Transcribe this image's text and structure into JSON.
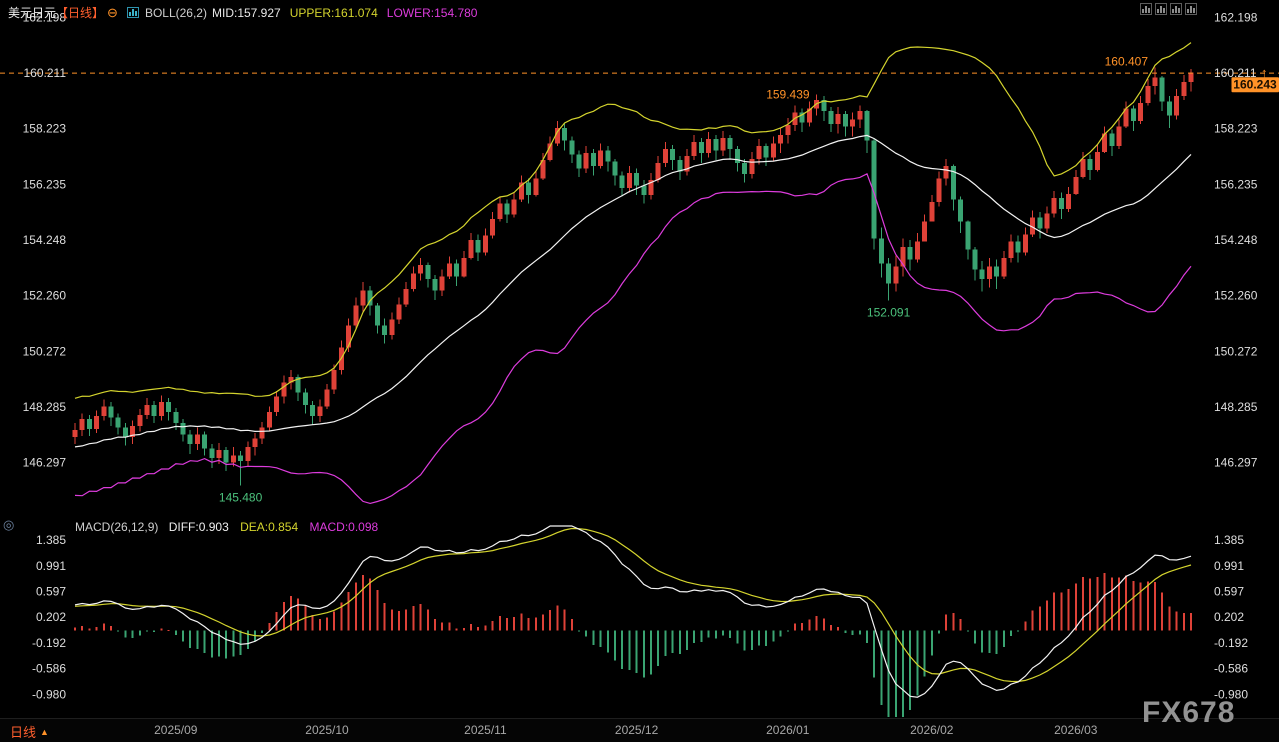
{
  "header": {
    "symbol": "美元日元",
    "timeframe_tag": "【日线】",
    "collapse_icon": "⊖",
    "boll_label": "BOLL(26,2)",
    "mid_label": "MID:157.927",
    "upper_label": "UPPER:161.074",
    "lower_label": "LOWER:154.780"
  },
  "macd_header": {
    "macd_label": "MACD(26,12,9)",
    "diff_label": "DIFF:0.903",
    "dea_label": "DEA:0.854",
    "macd_value_label": "MACD:0.098"
  },
  "footer": {
    "timeframe": "日线",
    "timeframe_arrow": "▲",
    "watermark": "FX678"
  },
  "icons": {
    "arrow_up": "↑",
    "toolbar": [
      "candlestick-view",
      "bar-view",
      "line-view",
      "fullscreen-view"
    ],
    "crosshair": "◎"
  },
  "colors": {
    "background": "#000000",
    "up": "#df4238",
    "down": "#3aa472",
    "boll_upper": "#d4d42e",
    "boll_mid": "#f2f2f2",
    "boll_lower": "#dd3cdd",
    "diff": "#f2f2f2",
    "dea": "#d4d42e",
    "orange": "#ff9228",
    "annotation_green": "#4cc27d",
    "axis_text": "#dedede",
    "x_text": "#a8a8a8"
  },
  "chart_data": {
    "type": "candlestick",
    "symbol": "USD/JPY",
    "title": "美元日元 日线",
    "interval": "daily",
    "price_panel": {
      "indicator": "BOLL(26,2)",
      "ticks": [
        162.198,
        160.211,
        158.223,
        156.235,
        154.248,
        152.26,
        150.272,
        148.285,
        146.297
      ]
    },
    "macd_panel": {
      "indicator": "MACD(26,12,9)",
      "ticks": [
        1.385,
        0.991,
        0.597,
        0.202,
        -0.192,
        -0.586,
        -0.98
      ]
    },
    "x_ticks": {
      "labels": [
        "2025/09",
        "2025/10",
        "2025/11",
        "2025/12",
        "2026/01",
        "2026/02",
        "2026/03"
      ],
      "indices": [
        14,
        35,
        57,
        78,
        99,
        119,
        139
      ]
    },
    "boll": {
      "period": 26,
      "mult": 2
    },
    "macd": {
      "fast": 12,
      "slow": 26,
      "signal": 9
    },
    "latest": {
      "mid": 157.927,
      "upper": 161.074,
      "lower": 154.78,
      "diff": 0.903,
      "dea": 0.854,
      "macd": 0.098
    },
    "ref_line": 160.211,
    "last_price": {
      "text": "160.243",
      "price": 160.243
    },
    "first_open": 147.2,
    "close": [
      147.45,
      147.85,
      147.5,
      147.95,
      148.3,
      147.9,
      147.55,
      147.2,
      147.6,
      148.0,
      148.35,
      147.95,
      148.45,
      148.1,
      147.7,
      147.3,
      146.95,
      147.3,
      146.8,
      146.45,
      146.75,
      146.3,
      146.55,
      146.35,
      146.85,
      147.15,
      147.55,
      148.1,
      148.65,
      149.15,
      149.35,
      148.8,
      148.35,
      147.95,
      148.3,
      148.9,
      149.6,
      150.4,
      151.2,
      151.9,
      152.45,
      151.9,
      151.2,
      150.85,
      151.4,
      151.95,
      152.5,
      153.05,
      153.35,
      152.85,
      152.45,
      152.95,
      153.4,
      152.95,
      153.6,
      154.25,
      153.8,
      154.4,
      155.0,
      155.55,
      155.15,
      155.7,
      156.3,
      155.85,
      156.45,
      157.1,
      157.7,
      158.25,
      157.8,
      157.3,
      156.8,
      157.35,
      156.9,
      157.45,
      157.05,
      156.55,
      156.1,
      156.65,
      156.2,
      155.85,
      156.4,
      157.0,
      157.5,
      157.1,
      156.7,
      157.25,
      157.75,
      157.35,
      157.85,
      157.45,
      157.9,
      157.5,
      157.0,
      156.6,
      157.15,
      157.6,
      157.2,
      157.7,
      158.0,
      158.35,
      158.8,
      158.45,
      158.95,
      159.25,
      158.85,
      158.4,
      158.75,
      158.3,
      158.55,
      158.85,
      157.8,
      154.3,
      153.4,
      152.7,
      153.3,
      154.0,
      153.55,
      154.2,
      154.9,
      155.6,
      156.45,
      156.9,
      155.7,
      154.9,
      153.9,
      153.2,
      152.85,
      153.3,
      152.95,
      153.6,
      154.2,
      153.8,
      154.45,
      155.05,
      154.65,
      155.2,
      155.75,
      155.35,
      155.9,
      156.5,
      157.15,
      156.75,
      157.4,
      158.05,
      157.6,
      158.3,
      158.95,
      158.5,
      159.15,
      159.75,
      160.05,
      159.2,
      158.7,
      159.4,
      159.9,
      160.24
    ],
    "high": [
      147.7,
      148.05,
      148.0,
      148.15,
      148.55,
      148.45,
      148.05,
      147.7,
      147.8,
      148.2,
      148.6,
      148.5,
      148.7,
      148.6,
      148.25,
      147.85,
      147.45,
      147.55,
      147.4,
      146.95,
      147.0,
      146.85,
      146.85,
      146.7,
      147.05,
      147.35,
      147.75,
      148.3,
      148.85,
      149.4,
      149.6,
      149.45,
      148.95,
      148.5,
      148.55,
      149.1,
      149.8,
      150.65,
      151.45,
      152.2,
      152.75,
      152.6,
      152.0,
      151.45,
      151.65,
      152.2,
      152.75,
      153.3,
      153.6,
      153.45,
      153.0,
      153.2,
      153.65,
      153.55,
      153.85,
      154.5,
      154.45,
      154.65,
      155.25,
      155.8,
      155.7,
      155.95,
      156.55,
      156.45,
      156.7,
      157.35,
      157.95,
      158.5,
      158.45,
      157.95,
      157.45,
      157.6,
      157.5,
      157.7,
      157.6,
      157.15,
      156.7,
      156.9,
      156.8,
      156.4,
      156.65,
      157.25,
      157.75,
      157.65,
      157.25,
      157.5,
      158.0,
      157.9,
      158.1,
      158.0,
      158.15,
      158.0,
      157.6,
      157.15,
      157.4,
      157.85,
      157.7,
      157.95,
      158.25,
      158.6,
      159.05,
      158.95,
      159.2,
      159.44,
      159.4,
      159.0,
      159.0,
      158.85,
      158.8,
      159.05,
      158.9,
      157.9,
      154.7,
      153.6,
      153.7,
      154.3,
      154.25,
      154.5,
      155.15,
      155.85,
      156.7,
      157.15,
      156.95,
      155.8,
      154.95,
      154.0,
      153.5,
      153.6,
      153.55,
      153.85,
      154.45,
      154.4,
      154.7,
      155.3,
      155.25,
      155.45,
      156.0,
      155.95,
      156.15,
      156.75,
      157.4,
      157.3,
      157.65,
      158.3,
      158.2,
      158.55,
      159.2,
      159.05,
      159.4,
      160.0,
      160.41,
      160.1,
      159.4,
      159.65,
      160.15,
      160.35
    ],
    "low": [
      146.95,
      147.25,
      147.25,
      147.35,
      147.8,
      147.6,
      147.3,
      146.9,
      146.95,
      147.4,
      147.85,
      147.7,
      147.8,
      147.8,
      147.45,
      147.05,
      146.6,
      146.75,
      146.55,
      146.1,
      146.25,
      146.0,
      146.15,
      145.48,
      146.15,
      146.55,
      146.95,
      147.4,
      147.95,
      148.4,
      148.9,
      148.5,
      148.05,
      147.65,
      147.75,
      148.2,
      148.75,
      149.45,
      150.25,
      151.05,
      151.7,
      151.55,
      150.9,
      150.55,
      150.7,
      151.25,
      151.85,
      152.4,
      152.8,
      152.55,
      152.1,
      152.25,
      152.85,
      152.6,
      152.9,
      153.55,
      153.5,
      153.7,
      154.3,
      154.9,
      154.85,
      155.05,
      155.6,
      155.55,
      155.8,
      156.4,
      157.05,
      157.6,
      157.45,
      157.0,
      156.5,
      156.65,
      156.55,
      156.8,
      156.7,
      156.2,
      155.8,
      155.95,
      155.85,
      155.55,
      155.7,
      156.3,
      156.85,
      156.75,
      156.4,
      156.55,
      157.1,
      157.0,
      157.2,
      157.1,
      157.25,
      157.15,
      156.7,
      156.3,
      156.45,
      156.95,
      156.9,
      157.05,
      157.35,
      157.7,
      158.15,
      158.1,
      158.3,
      158.7,
      158.5,
      158.1,
      158.05,
      157.95,
      157.95,
      158.25,
      157.35,
      153.9,
      152.9,
      152.09,
      152.4,
      152.95,
      153.15,
      153.45,
      154.2,
      154.95,
      155.45,
      156.2,
      155.3,
      154.5,
      153.55,
      152.8,
      152.4,
      152.55,
      152.5,
      152.85,
      153.45,
      153.45,
      153.7,
      154.35,
      154.3,
      154.5,
      155.05,
      155.0,
      155.25,
      155.85,
      156.45,
      156.4,
      156.7,
      157.35,
      157.25,
      157.5,
      158.25,
      158.15,
      158.4,
      159.05,
      159.45,
      158.85,
      158.25,
      158.55,
      159.25,
      159.55
    ],
    "annotations": [
      {
        "text": "160.407",
        "index": 150,
        "price": 160.407,
        "placement": "left",
        "dy": -6,
        "color": "#ff9228"
      },
      {
        "text": "159.439",
        "index": 103,
        "price": 159.439,
        "placement": "left",
        "dy": 0,
        "color": "#ff9228"
      },
      {
        "text": "152.091",
        "index": 113,
        "price": 152.091,
        "placement": "below",
        "dy": 0,
        "color": "#4cc27d"
      },
      {
        "text": "145.480",
        "index": 23,
        "price": 145.48,
        "placement": "below",
        "dy": 0,
        "color": "#4cc27d"
      }
    ]
  }
}
